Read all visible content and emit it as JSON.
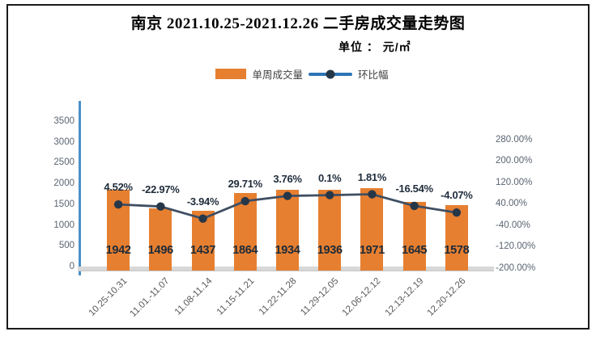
{
  "chart": {
    "title": "南京 2021.10.25-2021.12.26 二手房成交量走势图",
    "subtitle": "单位 ： 元/㎡",
    "legend": {
      "bar_label": "单周成交量",
      "line_label": "环比幅"
    }
  },
  "chart_data": {
    "type": "bar",
    "title": "南京 2021.10.25-2021.12.26 二手房成交量走势图",
    "unit_note": "单位 ： 元/㎡",
    "categories": [
      "10.25-10.31",
      "11.01.-11.07",
      "11.08-11.14",
      "11.15-11.21",
      "11.22-11.28",
      "11.29-12.05",
      "12.06-12.12",
      "12.13-12.19",
      "12.20-12.26"
    ],
    "series": [
      {
        "name": "单周成交量",
        "type": "bar",
        "axis": "left",
        "values": [
          1942,
          1496,
          1437,
          1864,
          1934,
          1936,
          1971,
          1645,
          1578
        ]
      },
      {
        "name": "环比幅",
        "type": "line",
        "axis": "right",
        "values_percent": [
          4.52,
          -22.97,
          -3.94,
          29.71,
          3.76,
          0.1,
          1.81,
          -16.54,
          -4.07
        ],
        "point_labels": [
          "4.52%",
          "-22.97%",
          "-3.94%",
          "29.71%",
          "3.76%",
          "0.1%",
          "1.81%",
          "-16.54%",
          "-4.07%"
        ]
      }
    ],
    "left_axis": {
      "min": 0,
      "max": 4000,
      "tick_values": [
        3500,
        3000,
        2500,
        2000,
        1500,
        1000,
        500,
        0
      ],
      "tick_labels": [
        "3500",
        "3000",
        "2500",
        "2000",
        "1500",
        "1000",
        "500",
        "0"
      ]
    },
    "right_axis": {
      "min": -200,
      "max": 420,
      "tick_values": [
        280,
        200,
        120,
        40,
        -40,
        -120,
        -200
      ],
      "tick_labels": [
        "280.00%",
        "200.00%",
        "120.00%",
        "40.00%",
        "-40.00%",
        "-120.00%",
        "-200.00%"
      ]
    },
    "colors": {
      "bar": "#E67F30",
      "line": "#3F4E62",
      "marker": "#263748",
      "legend_line": "#2C74B4",
      "left_axis_line": "#4A8FC7",
      "x_axis_band": "#D8D8D8",
      "value_label": "#1E2B39",
      "percent_label": "#1F2C3B",
      "tick_label": "#5A6472",
      "x_tick_label": "#595959"
    },
    "layout": {
      "legend_position": "top-center",
      "grid": false,
      "x_label_rotation_deg": -45,
      "line_visual_anchor_left_axis": [
        1570,
        1520,
        1230,
        1650,
        1775,
        1795,
        1815,
        1535,
        1375
      ]
    }
  }
}
